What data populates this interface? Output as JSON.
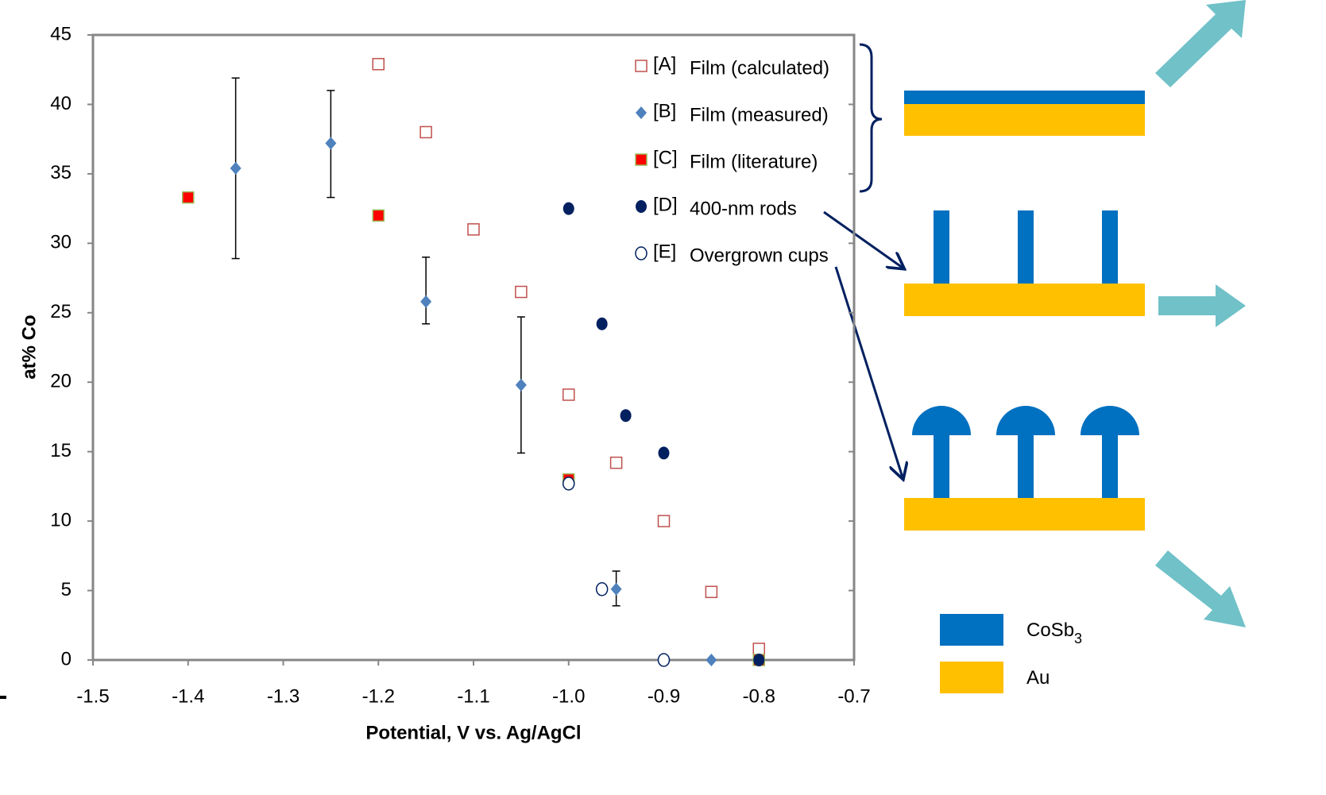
{
  "chart_data": {
    "type": "scatter",
    "x_label": "Potential, V vs. Ag/AgCl",
    "y_label": "at% Co",
    "xlim": [
      -1.5,
      -0.7
    ],
    "xticks": [
      -1.5,
      -1.4,
      -1.3,
      -1.2,
      -1.1,
      {
        "value": -1,
        "label": "-1.0"
      },
      -0.9,
      -0.8,
      -0.7
    ],
    "ylim": [
      0,
      45
    ],
    "yticks": [
      0,
      5,
      10,
      15,
      20,
      25,
      30,
      35,
      40,
      45
    ],
    "series": [
      {
        "name": "[A]",
        "label": "Film (calculated)",
        "color": "#c0504d",
        "marker": "square-open",
        "x": [
          -1.2,
          -1.15,
          -1.1,
          -1.05,
          -1.0,
          -0.95,
          -0.9,
          -0.85,
          -0.8
        ],
        "values": [
          42.9,
          38.0,
          31.0,
          26.5,
          19.1,
          14.2,
          10.0,
          4.9,
          0.8
        ]
      },
      {
        "name": "[B]",
        "label": "Film (measured)",
        "color": "#4f81bd",
        "marker": "diamond",
        "x": [
          -1.35,
          -1.25,
          -1.15,
          -1.05,
          -0.95,
          -0.85
        ],
        "values": [
          35.4,
          37.2,
          25.8,
          19.8,
          5.1,
          0
        ],
        "error_plus": [
          6.5,
          3.8,
          3.2,
          4.9,
          1.3,
          null
        ],
        "error_minus": [
          6.5,
          3.9,
          1.6,
          4.9,
          1.2,
          null
        ]
      },
      {
        "name": "[C]",
        "label": "Film (literature)",
        "color": "#ff0000",
        "marker": "square",
        "x": [
          -1.4,
          -1.2,
          -1.0,
          -0.8
        ],
        "values": [
          33.3,
          32.0,
          13.0,
          0
        ]
      },
      {
        "name": "[D]",
        "label": "400-nm rods",
        "color": "#002060",
        "marker": "circle",
        "x": [
          -1.0,
          -0.965,
          -0.94,
          -0.9,
          -0.8
        ],
        "values": [
          32.5,
          24.2,
          17.6,
          14.9,
          0
        ]
      },
      {
        "name": "[E]",
        "label": "Overgrown cups",
        "color": "#002060",
        "marker": "circle-open",
        "x": [
          -1.0,
          -0.965,
          -0.9
        ],
        "values": [
          12.7,
          5.1,
          0
        ]
      }
    ]
  },
  "diagram": {
    "legend": [
      {
        "label": "CoSb",
        "sub": "3",
        "color": "#0070c0"
      },
      {
        "label": "Au",
        "color": "#ffc000"
      }
    ]
  }
}
